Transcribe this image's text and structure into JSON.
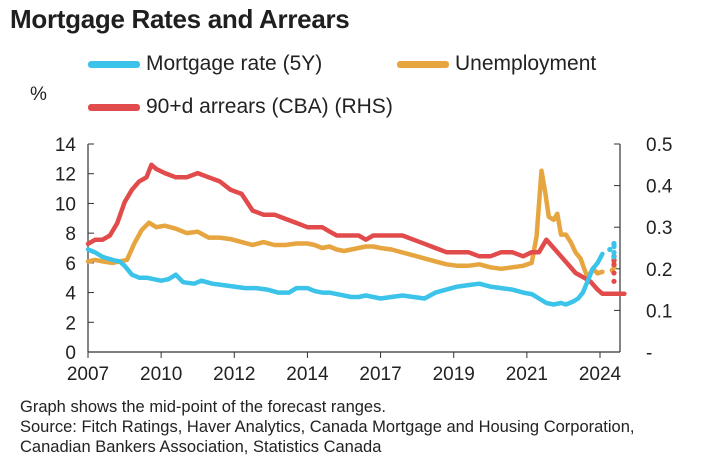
{
  "title": "Mortgage Rates and Arrears",
  "unit_label": "%",
  "notes": [
    "Graph shows the mid-point of the forecast ranges.",
    "Source: Fitch Ratings, Haver Analytics, Canada Mortgage and Housing Corporation,",
    "Canadian Bankers Association, Statistics Canada"
  ],
  "chart_data": {
    "type": "line",
    "legend_placement": "top",
    "grid": false,
    "xlim": [
      2007.0,
      2025.0
    ],
    "x_ticks": [
      2007,
      2010,
      2012,
      2014,
      2017,
      2019,
      2021,
      2024
    ],
    "x_tick_labels": [
      "2007",
      "2010",
      "2012",
      "2014",
      "2017",
      "2019",
      "2021",
      "2024"
    ],
    "y_left": {
      "ylim": [
        0,
        14
      ],
      "ticks": [
        0,
        2,
        4,
        6,
        8,
        10,
        12,
        14
      ],
      "tick_labels": [
        "0",
        "2",
        "4",
        "6",
        "8",
        "10",
        "12",
        "14"
      ]
    },
    "y_right": {
      "ylim": [
        0,
        0.5
      ],
      "ticks": [
        0,
        0.1,
        0.2,
        0.3,
        0.4,
        0.5
      ],
      "tick_labels": [
        "-",
        "0.1",
        "0.2",
        "0.3",
        "0.4",
        "0.5"
      ]
    },
    "series": [
      {
        "name": "Mortgage rate (5Y)",
        "axis": "left",
        "color": "#3cc3ea",
        "values": [
          [
            2007.0,
            6.9
          ],
          [
            2007.3,
            6.7
          ],
          [
            2007.6,
            6.4
          ],
          [
            2008.0,
            6.2
          ],
          [
            2008.3,
            6.1
          ],
          [
            2008.5,
            5.8
          ],
          [
            2008.8,
            5.2
          ],
          [
            2009.1,
            5.0
          ],
          [
            2009.4,
            5.0
          ],
          [
            2009.7,
            4.9
          ],
          [
            2010.0,
            4.8
          ],
          [
            2010.2,
            4.9
          ],
          [
            2010.4,
            5.2
          ],
          [
            2010.6,
            4.7
          ],
          [
            2010.9,
            4.6
          ],
          [
            2011.1,
            4.8
          ],
          [
            2011.4,
            4.6
          ],
          [
            2011.7,
            4.5
          ],
          [
            2012.0,
            4.4
          ],
          [
            2012.3,
            4.3
          ],
          [
            2012.6,
            4.3
          ],
          [
            2012.9,
            4.2
          ],
          [
            2013.2,
            4.0
          ],
          [
            2013.5,
            4.0
          ],
          [
            2013.7,
            4.3
          ],
          [
            2014.0,
            4.3
          ],
          [
            2014.3,
            4.1
          ],
          [
            2014.6,
            4.0
          ],
          [
            2014.9,
            4.0
          ],
          [
            2015.2,
            3.9
          ],
          [
            2015.5,
            3.8
          ],
          [
            2015.8,
            3.7
          ],
          [
            2016.1,
            3.7
          ],
          [
            2016.4,
            3.8
          ],
          [
            2016.7,
            3.7
          ],
          [
            2017.0,
            3.6
          ],
          [
            2017.3,
            3.7
          ],
          [
            2017.6,
            3.8
          ],
          [
            2017.9,
            3.7
          ],
          [
            2018.2,
            3.6
          ],
          [
            2018.5,
            4.0
          ],
          [
            2018.8,
            4.2
          ],
          [
            2019.1,
            4.4
          ],
          [
            2019.4,
            4.5
          ],
          [
            2019.7,
            4.6
          ],
          [
            2020.0,
            4.4
          ],
          [
            2020.3,
            4.3
          ],
          [
            2020.6,
            4.2
          ],
          [
            2020.9,
            4.0
          ],
          [
            2021.2,
            3.9
          ],
          [
            2021.5,
            3.6
          ],
          [
            2021.8,
            3.3
          ],
          [
            2022.1,
            3.2
          ],
          [
            2022.4,
            3.3
          ],
          [
            2022.6,
            3.2
          ],
          [
            2022.9,
            3.4
          ],
          [
            2023.1,
            3.6
          ],
          [
            2023.3,
            4.0
          ],
          [
            2023.5,
            4.8
          ],
          [
            2023.7,
            5.6
          ],
          [
            2023.9,
            6.0
          ],
          [
            2024.1,
            6.6
          ]
        ],
        "forecast": [
          [
            2024.4,
            6.9
          ],
          [
            2024.7,
            7.1
          ],
          [
            2025.0,
            7.2
          ],
          [
            2025.3,
            7.3
          ],
          [
            2025.6,
            7.1
          ],
          [
            2025.9,
            6.7
          ],
          [
            2026.2,
            6.4
          ]
        ]
      },
      {
        "name": "Unemployment",
        "axis": "left",
        "color": "#e6a53f",
        "values": [
          [
            2007.0,
            6.1
          ],
          [
            2007.3,
            6.2
          ],
          [
            2007.6,
            6.1
          ],
          [
            2008.0,
            6.0
          ],
          [
            2008.3,
            6.1
          ],
          [
            2008.6,
            6.2
          ],
          [
            2008.9,
            7.3
          ],
          [
            2009.2,
            8.2
          ],
          [
            2009.5,
            8.7
          ],
          [
            2009.8,
            8.4
          ],
          [
            2010.1,
            8.5
          ],
          [
            2010.4,
            8.3
          ],
          [
            2010.7,
            8.0
          ],
          [
            2011.0,
            8.1
          ],
          [
            2011.3,
            7.7
          ],
          [
            2011.6,
            7.7
          ],
          [
            2011.9,
            7.6
          ],
          [
            2012.2,
            7.4
          ],
          [
            2012.5,
            7.2
          ],
          [
            2012.8,
            7.4
          ],
          [
            2013.1,
            7.2
          ],
          [
            2013.4,
            7.2
          ],
          [
            2013.7,
            7.3
          ],
          [
            2014.0,
            7.3
          ],
          [
            2014.3,
            7.2
          ],
          [
            2014.6,
            7.0
          ],
          [
            2014.9,
            7.1
          ],
          [
            2015.2,
            6.9
          ],
          [
            2015.5,
            6.8
          ],
          [
            2015.8,
            6.9
          ],
          [
            2016.1,
            7.0
          ],
          [
            2016.4,
            7.1
          ],
          [
            2016.7,
            7.1
          ],
          [
            2017.0,
            7.0
          ],
          [
            2017.3,
            6.9
          ],
          [
            2017.6,
            6.7
          ],
          [
            2017.9,
            6.5
          ],
          [
            2018.2,
            6.3
          ],
          [
            2018.5,
            6.1
          ],
          [
            2018.8,
            5.9
          ],
          [
            2019.1,
            5.8
          ],
          [
            2019.4,
            5.8
          ],
          [
            2019.7,
            5.9
          ],
          [
            2020.0,
            5.7
          ],
          [
            2020.3,
            5.6
          ],
          [
            2020.6,
            5.7
          ],
          [
            2020.9,
            5.8
          ],
          [
            2021.2,
            6.0
          ],
          [
            2021.4,
            7.8
          ],
          [
            2021.6,
            12.2
          ],
          [
            2021.75,
            10.8
          ],
          [
            2021.9,
            9.1
          ],
          [
            2022.1,
            8.9
          ],
          [
            2022.25,
            9.3
          ],
          [
            2022.4,
            7.9
          ],
          [
            2022.6,
            7.9
          ],
          [
            2022.8,
            7.4
          ],
          [
            2023.0,
            6.7
          ],
          [
            2023.2,
            6.3
          ],
          [
            2023.35,
            5.6
          ],
          [
            2023.5,
            5.0
          ],
          [
            2023.7,
            5.6
          ],
          [
            2023.9,
            5.3
          ],
          [
            2024.1,
            5.4
          ]
        ],
        "forecast": [
          [
            2024.5,
            5.5
          ],
          [
            2024.8,
            5.7
          ],
          [
            2025.1,
            5.9
          ],
          [
            2025.4,
            6.1
          ],
          [
            2025.7,
            6.2
          ],
          [
            2026.0,
            6.2
          ],
          [
            2026.3,
            6.2
          ]
        ]
      },
      {
        "name": "90+d arrears (CBA) (RHS)",
        "axis": "right",
        "color": "#e24b4b",
        "values": [
          [
            2007.0,
            0.26
          ],
          [
            2007.3,
            0.27
          ],
          [
            2007.6,
            0.27
          ],
          [
            2007.9,
            0.28
          ],
          [
            2008.2,
            0.31
          ],
          [
            2008.5,
            0.36
          ],
          [
            2008.8,
            0.39
          ],
          [
            2009.1,
            0.41
          ],
          [
            2009.4,
            0.42
          ],
          [
            2009.6,
            0.45
          ],
          [
            2009.8,
            0.44
          ],
          [
            2010.1,
            0.43
          ],
          [
            2010.4,
            0.42
          ],
          [
            2010.7,
            0.42
          ],
          [
            2011.0,
            0.43
          ],
          [
            2011.3,
            0.42
          ],
          [
            2011.6,
            0.41
          ],
          [
            2011.9,
            0.39
          ],
          [
            2012.2,
            0.38
          ],
          [
            2012.5,
            0.34
          ],
          [
            2012.8,
            0.33
          ],
          [
            2013.1,
            0.33
          ],
          [
            2013.4,
            0.32
          ],
          [
            2013.7,
            0.31
          ],
          [
            2014.0,
            0.3
          ],
          [
            2014.3,
            0.3
          ],
          [
            2014.6,
            0.3
          ],
          [
            2014.9,
            0.29
          ],
          [
            2015.2,
            0.28
          ],
          [
            2015.5,
            0.28
          ],
          [
            2015.8,
            0.28
          ],
          [
            2016.1,
            0.28
          ],
          [
            2016.4,
            0.27
          ],
          [
            2016.7,
            0.28
          ],
          [
            2017.0,
            0.28
          ],
          [
            2017.3,
            0.28
          ],
          [
            2017.6,
            0.28
          ],
          [
            2017.9,
            0.27
          ],
          [
            2018.2,
            0.26
          ],
          [
            2018.5,
            0.25
          ],
          [
            2018.8,
            0.24
          ],
          [
            2019.1,
            0.24
          ],
          [
            2019.4,
            0.24
          ],
          [
            2019.7,
            0.23
          ],
          [
            2020.0,
            0.23
          ],
          [
            2020.3,
            0.24
          ],
          [
            2020.6,
            0.24
          ],
          [
            2020.9,
            0.23
          ],
          [
            2021.2,
            0.24
          ],
          [
            2021.5,
            0.24
          ],
          [
            2021.8,
            0.27
          ],
          [
            2022.1,
            0.25
          ],
          [
            2022.4,
            0.23
          ],
          [
            2022.7,
            0.21
          ],
          [
            2023.0,
            0.19
          ],
          [
            2023.3,
            0.18
          ],
          [
            2023.6,
            0.17
          ],
          [
            2023.9,
            0.15
          ],
          [
            2024.1,
            0.14
          ],
          [
            2024.4,
            0.14
          ],
          [
            2024.7,
            0.14
          ],
          [
            2025.0,
            0.14
          ]
        ],
        "forecast": [
          [
            2025.4,
            0.17
          ],
          [
            2025.7,
            0.19
          ],
          [
            2026.0,
            0.21
          ],
          [
            2026.3,
            0.22
          ],
          [
            2026.6,
            0.23
          ],
          [
            2026.9,
            0.23
          ],
          [
            2027.2,
            0.23
          ]
        ]
      }
    ]
  }
}
